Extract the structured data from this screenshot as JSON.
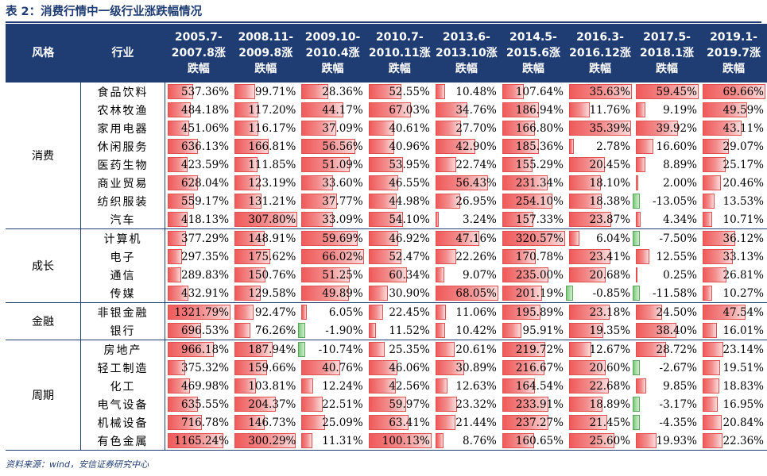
{
  "title": "表 2：消费行情中一级行业涨跌幅情况",
  "source": "资料来源：wind，安信证券研究中心",
  "colors": {
    "header_bg": "#1f3d73",
    "positive_bar": "#f05a5a",
    "negative_bar": "#7ec97e"
  },
  "header": {
    "style": "风格",
    "industry": "行业",
    "periods": [
      [
        "2005.7-",
        "2007.8涨",
        "跌幅"
      ],
      [
        "2008.11-",
        "2009.8涨",
        "跌幅"
      ],
      [
        "2009.10-",
        "2010.4涨",
        "跌幅"
      ],
      [
        "2010.7-",
        "2010.11涨",
        "跌幅"
      ],
      [
        "2013.6-",
        "2013.10涨",
        "跌幅"
      ],
      [
        "2014.5-",
        "2015.6涨",
        "跌幅"
      ],
      [
        "2016.3-",
        "2016.12涨",
        "跌幅"
      ],
      [
        "2017.5-",
        "2018.1涨",
        "跌幅"
      ],
      [
        "2019.1-",
        "2019.7涨",
        "跌幅"
      ]
    ]
  },
  "groups": [
    {
      "style": "消费",
      "rows": [
        {
          "industry": "食品饮料",
          "values": [
            "537.36%",
            "99.71%",
            "28.36%",
            "52.55%",
            "10.48%",
            "107.64%",
            "35.63%",
            "59.45%",
            "69.66%"
          ],
          "nums": [
            537.36,
            99.71,
            28.36,
            52.55,
            10.48,
            107.64,
            35.63,
            59.45,
            69.66
          ]
        },
        {
          "industry": "农林牧渔",
          "values": [
            "484.18%",
            "117.20%",
            "44.17%",
            "67.03%",
            "34.76%",
            "186.94%",
            "11.76%",
            "9.19%",
            "49.59%"
          ],
          "nums": [
            484.18,
            117.2,
            44.17,
            67.03,
            34.76,
            186.94,
            11.76,
            9.19,
            49.59
          ]
        },
        {
          "industry": "家用电器",
          "values": [
            "451.06%",
            "116.17%",
            "37.09%",
            "40.61%",
            "27.70%",
            "166.80%",
            "35.39%",
            "39.92%",
            "43.11%"
          ],
          "nums": [
            451.06,
            116.17,
            37.09,
            40.61,
            27.7,
            166.8,
            35.39,
            39.92,
            43.11
          ]
        },
        {
          "industry": "休闲服务",
          "values": [
            "636.13%",
            "166.81%",
            "56.56%",
            "40.96%",
            "42.90%",
            "185.36%",
            "2.78%",
            "16.60%",
            "29.07%"
          ],
          "nums": [
            636.13,
            166.81,
            56.56,
            40.96,
            42.9,
            185.36,
            2.78,
            16.6,
            29.07
          ]
        },
        {
          "industry": "医药生物",
          "values": [
            "423.59%",
            "111.85%",
            "51.09%",
            "53.95%",
            "22.74%",
            "155.29%",
            "20.45%",
            "8.89%",
            "25.17%"
          ],
          "nums": [
            423.59,
            111.85,
            51.09,
            53.95,
            22.74,
            155.29,
            20.45,
            8.89,
            25.17
          ]
        },
        {
          "industry": "商业贸易",
          "values": [
            "628.04%",
            "123.19%",
            "33.60%",
            "46.55%",
            "56.43%",
            "231.34%",
            "18.10%",
            "2.00%",
            "20.46%"
          ],
          "nums": [
            628.04,
            123.19,
            33.6,
            46.55,
            56.43,
            231.34,
            18.1,
            2.0,
            20.46
          ]
        },
        {
          "industry": "纺织服装",
          "values": [
            "559.17%",
            "131.21%",
            "37.77%",
            "44.98%",
            "26.95%",
            "254.10%",
            "18.38%",
            "-13.05%",
            "13.53%"
          ],
          "nums": [
            559.17,
            131.21,
            37.77,
            44.98,
            26.95,
            254.1,
            18.38,
            -13.05,
            13.53
          ]
        },
        {
          "industry": "汽车",
          "values": [
            "418.13%",
            "307.80%",
            "33.09%",
            "54.10%",
            "3.24%",
            "157.33%",
            "23.87%",
            "4.34%",
            "10.71%"
          ],
          "nums": [
            418.13,
            307.8,
            33.09,
            54.1,
            3.24,
            157.33,
            23.87,
            4.34,
            10.71
          ]
        }
      ]
    },
    {
      "style": "成长",
      "rows": [
        {
          "industry": "计算机",
          "values": [
            "377.29%",
            "148.91%",
            "59.69%",
            "46.92%",
            "47.16%",
            "320.57%",
            "6.04%",
            "-7.50%",
            "36.12%"
          ],
          "nums": [
            377.29,
            148.91,
            59.69,
            46.92,
            47.16,
            320.57,
            6.04,
            -7.5,
            36.12
          ]
        },
        {
          "industry": "电子",
          "values": [
            "297.35%",
            "175.62%",
            "66.02%",
            "52.47%",
            "22.26%",
            "170.78%",
            "23.41%",
            "12.55%",
            "33.13%"
          ],
          "nums": [
            297.35,
            175.62,
            66.02,
            52.47,
            22.26,
            170.78,
            23.41,
            12.55,
            33.13
          ]
        },
        {
          "industry": "通信",
          "values": [
            "289.83%",
            "150.76%",
            "51.25%",
            "60.34%",
            "9.07%",
            "235.00%",
            "20.68%",
            "0.25%",
            "26.81%"
          ],
          "nums": [
            289.83,
            150.76,
            51.25,
            60.34,
            9.07,
            235.0,
            20.68,
            0.25,
            26.81
          ]
        },
        {
          "industry": "传媒",
          "values": [
            "432.91%",
            "129.58%",
            "49.89%",
            "30.90%",
            "68.05%",
            "201.19%",
            "-0.85%",
            "-11.58%",
            "10.27%"
          ],
          "nums": [
            432.91,
            129.58,
            49.89,
            30.9,
            68.05,
            201.19,
            -0.85,
            -11.58,
            10.27
          ]
        }
      ]
    },
    {
      "style": "金融",
      "rows": [
        {
          "industry": "非银金融",
          "values": [
            "1321.79%",
            "92.47%",
            "6.05%",
            "22.45%",
            "11.06%",
            "195.89%",
            "23.18%",
            "24.50%",
            "47.54%"
          ],
          "nums": [
            1321.79,
            92.47,
            6.05,
            22.45,
            11.06,
            195.89,
            23.18,
            24.5,
            47.54
          ]
        },
        {
          "industry": "银行",
          "values": [
            "696.53%",
            "76.26%",
            "-1.90%",
            "11.52%",
            "10.42%",
            "95.91%",
            "19.35%",
            "38.40%",
            "16.01%"
          ],
          "nums": [
            696.53,
            76.26,
            -1.9,
            11.52,
            10.42,
            95.91,
            19.35,
            38.4,
            16.01
          ]
        }
      ]
    },
    {
      "style": "周期",
      "rows": [
        {
          "industry": "房地产",
          "values": [
            "966.18%",
            "187.94%",
            "-10.74%",
            "25.35%",
            "20.61%",
            "219.72%",
            "12.67%",
            "28.72%",
            "23.14%"
          ],
          "nums": [
            966.18,
            187.94,
            -10.74,
            25.35,
            20.61,
            219.72,
            12.67,
            28.72,
            23.14
          ]
        },
        {
          "industry": "轻工制造",
          "values": [
            "375.32%",
            "159.66%",
            "40.76%",
            "46.06%",
            "30.89%",
            "216.67%",
            "20.60%",
            "-2.67%",
            "19.51%"
          ],
          "nums": [
            375.32,
            159.66,
            40.76,
            46.06,
            30.89,
            216.67,
            20.6,
            -2.67,
            19.51
          ]
        },
        {
          "industry": "化工",
          "values": [
            "469.98%",
            "103.81%",
            "12.24%",
            "42.56%",
            "12.63%",
            "164.54%",
            "22.68%",
            "9.85%",
            "18.83%"
          ],
          "nums": [
            469.98,
            103.81,
            12.24,
            42.56,
            12.63,
            164.54,
            22.68,
            9.85,
            18.83
          ]
        },
        {
          "industry": "电气设备",
          "values": [
            "635.55%",
            "204.37%",
            "22.51%",
            "59.97%",
            "23.32%",
            "233.91%",
            "18.89%",
            "-3.17%",
            "16.95%"
          ],
          "nums": [
            635.55,
            204.37,
            22.51,
            59.97,
            23.32,
            233.91,
            18.89,
            -3.17,
            16.95
          ]
        },
        {
          "industry": "机械设备",
          "values": [
            "716.78%",
            "146.73%",
            "25.09%",
            "63.41%",
            "21.44%",
            "237.27%",
            "21.45%",
            "-4.35%",
            "20.84%"
          ],
          "nums": [
            716.78,
            146.73,
            25.09,
            63.41,
            21.44,
            237.27,
            21.45,
            -4.35,
            20.84
          ]
        },
        {
          "industry": "有色金属",
          "values": [
            "1165.24%",
            "300.29%",
            "11.31%",
            "100.13%",
            "8.76%",
            "160.65%",
            "25.60%",
            "19.93%",
            "22.36%"
          ],
          "nums": [
            1165.24,
            300.29,
            11.31,
            100.13,
            8.76,
            160.65,
            25.6,
            19.93,
            22.36
          ]
        }
      ]
    }
  ]
}
